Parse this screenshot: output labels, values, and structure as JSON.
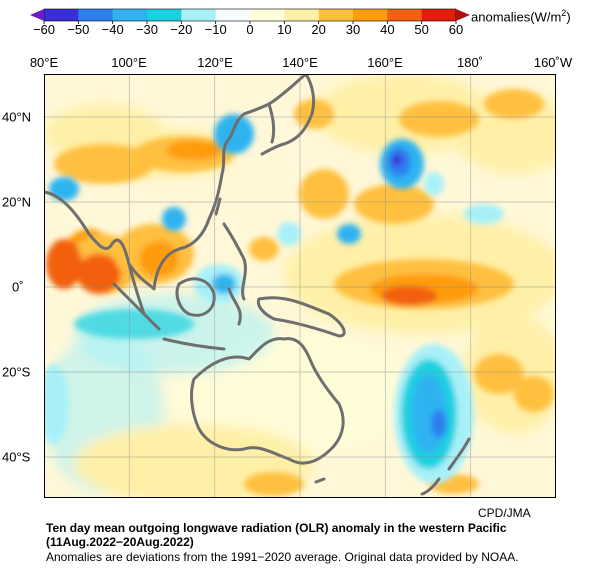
{
  "colorbar": {
    "unit_prefix": "anomalies(W/m",
    "unit_exp": "2",
    "unit_suffix": ")",
    "ticks": [
      "−60",
      "−50",
      "−40",
      "−30",
      "−20",
      "−10",
      "0",
      "10",
      "20",
      "30",
      "40",
      "50",
      "60"
    ],
    "colors": [
      "#3a2fd6",
      "#2d7ff0",
      "#2fb3f0",
      "#1bd0e0",
      "#a8f0f8",
      "#f7fcff",
      "#ffffd8",
      "#fff0a8",
      "#ffc040",
      "#ff9c10",
      "#f26010",
      "#e01e0a"
    ],
    "end_colors": {
      "low": "#6a1fc0",
      "high": "#b01010"
    }
  },
  "map": {
    "lon_labels": [
      "80°E",
      "100°E",
      "120°E",
      "140°E",
      "160°E",
      "180˚",
      "160˚W"
    ],
    "lat_labels": [
      "40°N",
      "20°N",
      "0˚",
      "20°S",
      "40°S"
    ],
    "background_color": "#fff8d8",
    "coast_color": "#6e6e6e"
  },
  "credit": "CPD/JMA",
  "caption": {
    "title": "Ten day mean outgoing longwave radiation (OLR) anomaly in the western Pacific",
    "period": "(11Aug.2022−20Aug.2022)",
    "note": "Anomalies are deviations from the 1991−2020 average. Original data provided by NOAA."
  }
}
